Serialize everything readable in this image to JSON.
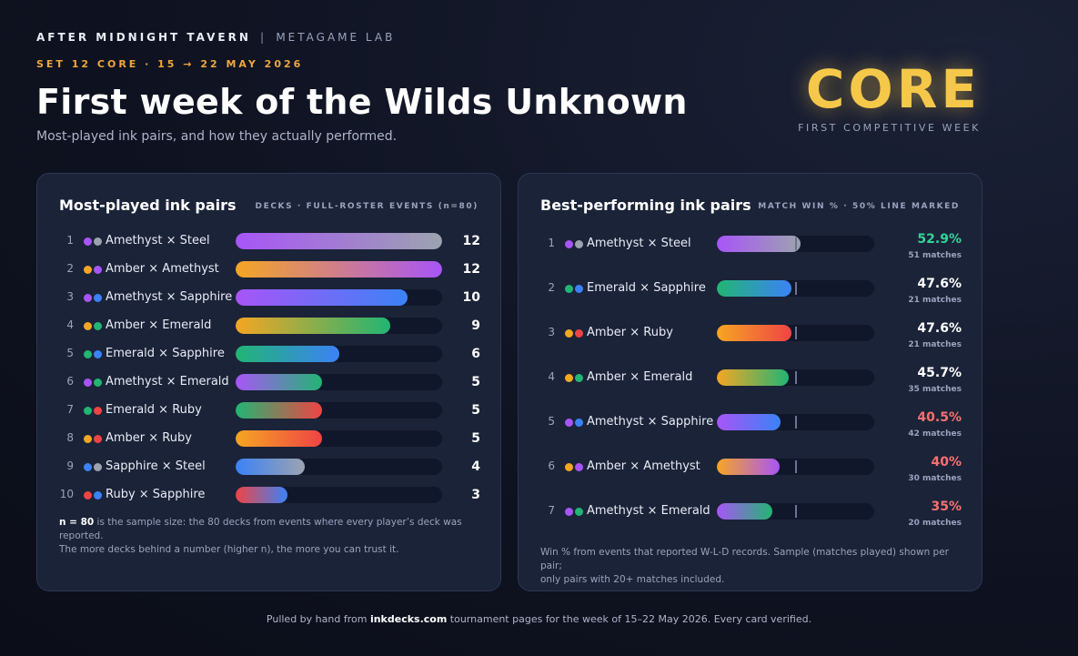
{
  "header": {
    "brand": "AFTER MIDNIGHT TAVERN",
    "separator": "|",
    "lab": "METAGAME LAB",
    "set_line": "SET 12 CORE · 15 → 22 MAY 2026",
    "title": "First week of the Wilds Unknown",
    "subtitle": "Most-played ink pairs, and how they actually performed."
  },
  "badge": {
    "word": "CORE",
    "caption": "FIRST COMPETITIVE WEEK"
  },
  "ink_colors": {
    "Amethyst": "#a855f7",
    "Steel": "#9ca3af",
    "Amber": "#f5a623",
    "Sapphire": "#3b82f6",
    "Emerald": "#22b573",
    "Ruby": "#ef4444"
  },
  "chart_data": [
    {
      "type": "bar",
      "title": "Most-played ink pairs",
      "caption": "DECKS · FULL-ROSTER EVENTS (n=80)",
      "xlim": [
        0,
        12
      ],
      "rows": [
        {
          "rank": "1",
          "inks": [
            "Amethyst",
            "Steel"
          ],
          "label": "Amethyst × Steel",
          "value": 12,
          "value_label": "12"
        },
        {
          "rank": "2",
          "inks": [
            "Amber",
            "Amethyst"
          ],
          "label": "Amber × Amethyst",
          "value": 12,
          "value_label": "12"
        },
        {
          "rank": "3",
          "inks": [
            "Amethyst",
            "Sapphire"
          ],
          "label": "Amethyst × Sapphire",
          "value": 10,
          "value_label": "10"
        },
        {
          "rank": "4",
          "inks": [
            "Amber",
            "Emerald"
          ],
          "label": "Amber × Emerald",
          "value": 9,
          "value_label": "9"
        },
        {
          "rank": "5",
          "inks": [
            "Emerald",
            "Sapphire"
          ],
          "label": "Emerald × Sapphire",
          "value": 6,
          "value_label": "6"
        },
        {
          "rank": "6",
          "inks": [
            "Amethyst",
            "Emerald"
          ],
          "label": "Amethyst × Emerald",
          "value": 5,
          "value_label": "5"
        },
        {
          "rank": "7",
          "inks": [
            "Emerald",
            "Ruby"
          ],
          "label": "Emerald × Ruby",
          "value": 5,
          "value_label": "5"
        },
        {
          "rank": "8",
          "inks": [
            "Amber",
            "Ruby"
          ],
          "label": "Amber × Ruby",
          "value": 5,
          "value_label": "5"
        },
        {
          "rank": "9",
          "inks": [
            "Sapphire",
            "Steel"
          ],
          "label": "Sapphire × Steel",
          "value": 4,
          "value_label": "4"
        },
        {
          "rank": "10",
          "inks": [
            "Ruby",
            "Sapphire"
          ],
          "label": "Ruby × Sapphire",
          "value": 3,
          "value_label": "3"
        }
      ],
      "note_bold": "n = 80",
      "note_rest": " is the sample size: the 80 decks from events where every player’s deck was reported.",
      "note_line2": "The more decks behind a number (higher n), the more you can trust it."
    },
    {
      "type": "bar",
      "title": "Best-performing ink pairs",
      "caption": "MATCH WIN % · 50% LINE MARKED",
      "xlim": [
        0,
        100
      ],
      "reference_line": 50,
      "rows": [
        {
          "rank": "1",
          "inks": [
            "Amethyst",
            "Steel"
          ],
          "label": "Amethyst × Steel",
          "value": 52.9,
          "value_label": "52.9%",
          "matches": "51 matches",
          "value_color": "#34d399"
        },
        {
          "rank": "2",
          "inks": [
            "Emerald",
            "Sapphire"
          ],
          "label": "Emerald × Sapphire",
          "value": 47.6,
          "value_label": "47.6%",
          "matches": "21 matches",
          "value_color": "#ffffff"
        },
        {
          "rank": "3",
          "inks": [
            "Amber",
            "Ruby"
          ],
          "label": "Amber × Ruby",
          "value": 47.6,
          "value_label": "47.6%",
          "matches": "21 matches",
          "value_color": "#ffffff"
        },
        {
          "rank": "4",
          "inks": [
            "Amber",
            "Emerald"
          ],
          "label": "Amber × Emerald",
          "value": 45.7,
          "value_label": "45.7%",
          "matches": "35 matches",
          "value_color": "#ffffff"
        },
        {
          "rank": "5",
          "inks": [
            "Amethyst",
            "Sapphire"
          ],
          "label": "Amethyst × Sapphire",
          "value": 40.5,
          "value_label": "40.5%",
          "matches": "42 matches",
          "value_color": "#f87171"
        },
        {
          "rank": "6",
          "inks": [
            "Amber",
            "Amethyst"
          ],
          "label": "Amber × Amethyst",
          "value": 40,
          "value_label": "40%",
          "matches": "30 matches",
          "value_color": "#f87171"
        },
        {
          "rank": "7",
          "inks": [
            "Amethyst",
            "Emerald"
          ],
          "label": "Amethyst × Emerald",
          "value": 35,
          "value_label": "35%",
          "matches": "20 matches",
          "value_color": "#f87171"
        }
      ],
      "note_line1": "Win % from events that reported W-L-D records. Sample (matches played) shown per pair;",
      "note_line2": "only pairs with 20+ matches included."
    }
  ],
  "footer": {
    "pre": "Pulled by hand from ",
    "site": "inkdecks.com",
    "post": " tournament pages for the week of 15–22 May 2026. Every card verified."
  }
}
